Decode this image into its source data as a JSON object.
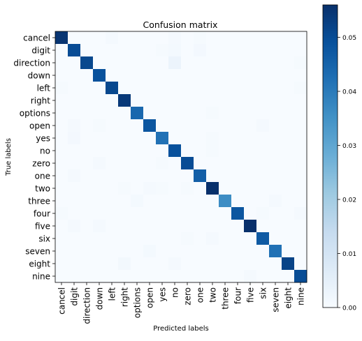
{
  "chart_data": {
    "type": "heatmap",
    "title": "Confusion matrix",
    "xlabel": "Predicted labels",
    "ylabel": "True labels",
    "labels": [
      "cancel",
      "digit",
      "direction",
      "down",
      "left",
      "right",
      "options",
      "open",
      "yes",
      "no",
      "zero",
      "one",
      "two",
      "three",
      "four",
      "five",
      "six",
      "seven",
      "eight",
      "nine"
    ],
    "diagonal": [
      0.055,
      0.05,
      0.051,
      0.049,
      0.051,
      0.054,
      0.044,
      0.048,
      0.042,
      0.049,
      0.05,
      0.046,
      0.056,
      0.036,
      0.048,
      0.056,
      0.047,
      0.042,
      0.052,
      0.05
    ],
    "off_diagonal": [
      {
        "row": 0,
        "col": 4,
        "value": 0.0008
      },
      {
        "row": 0,
        "col": 9,
        "value": 0.0008
      },
      {
        "row": 0,
        "col": 11,
        "value": 0.0006
      },
      {
        "row": 1,
        "col": 8,
        "value": 0.0006
      },
      {
        "row": 1,
        "col": 9,
        "value": 0.001
      },
      {
        "row": 1,
        "col": 11,
        "value": 0.0012
      },
      {
        "row": 2,
        "col": 9,
        "value": 0.003
      },
      {
        "row": 2,
        "col": 19,
        "value": 0.0006
      },
      {
        "row": 4,
        "col": 0,
        "value": 0.0006
      },
      {
        "row": 4,
        "col": 19,
        "value": 0.0006
      },
      {
        "row": 6,
        "col": 12,
        "value": 0.0006
      },
      {
        "row": 7,
        "col": 1,
        "value": 0.0008
      },
      {
        "row": 7,
        "col": 3,
        "value": 0.0006
      },
      {
        "row": 7,
        "col": 16,
        "value": 0.0008
      },
      {
        "row": 8,
        "col": 1,
        "value": 0.0012
      },
      {
        "row": 8,
        "col": 12,
        "value": 0.0006
      },
      {
        "row": 9,
        "col": 12,
        "value": 0.0006
      },
      {
        "row": 10,
        "col": 3,
        "value": 0.0008
      },
      {
        "row": 10,
        "col": 8,
        "value": 0.0006
      },
      {
        "row": 11,
        "col": 1,
        "value": 0.0008
      },
      {
        "row": 12,
        "col": 5,
        "value": 0.0006
      },
      {
        "row": 12,
        "col": 7,
        "value": 0.0008
      },
      {
        "row": 12,
        "col": 8,
        "value": 0.0006
      },
      {
        "row": 12,
        "col": 10,
        "value": 0.0006
      },
      {
        "row": 13,
        "col": 6,
        "value": 0.001
      },
      {
        "row": 13,
        "col": 17,
        "value": 0.0008
      },
      {
        "row": 14,
        "col": 0,
        "value": 0.0006
      },
      {
        "row": 14,
        "col": 16,
        "value": 0.0006
      },
      {
        "row": 14,
        "col": 19,
        "value": 0.0008
      },
      {
        "row": 15,
        "col": 1,
        "value": 0.0008
      },
      {
        "row": 15,
        "col": 3,
        "value": 0.0008
      },
      {
        "row": 16,
        "col": 10,
        "value": 0.0006
      },
      {
        "row": 16,
        "col": 12,
        "value": 0.0008
      },
      {
        "row": 17,
        "col": 7,
        "value": 0.001
      },
      {
        "row": 18,
        "col": 5,
        "value": 0.0015
      },
      {
        "row": 18,
        "col": 9,
        "value": 0.0008
      },
      {
        "row": 19,
        "col": 15,
        "value": 0.0008
      }
    ],
    "colorbar": {
      "colormap": "Blues",
      "range": [
        0,
        0.056
      ],
      "ticks": [
        0.0,
        0.01,
        0.02,
        0.03,
        0.04,
        0.05
      ],
      "tick_labels": [
        "0.00",
        "0.01",
        "0.02",
        "0.03",
        "0.04",
        "0.05"
      ]
    },
    "grid": false,
    "legend": "none"
  }
}
